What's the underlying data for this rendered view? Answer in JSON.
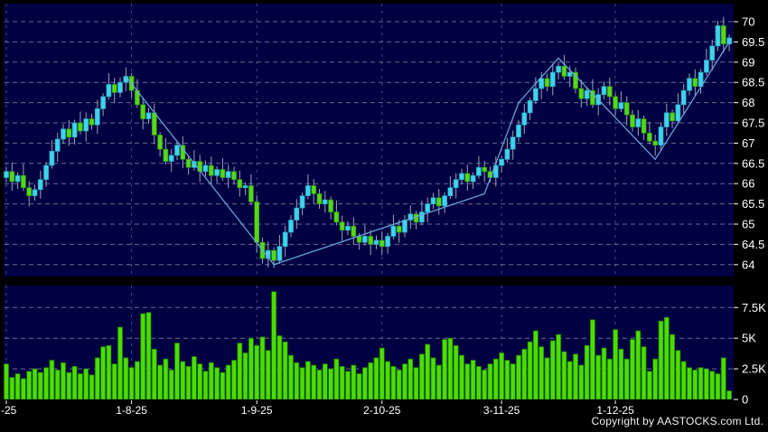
{
  "window": {
    "copyright": "Copyright by AASTOCKS.com Ltd."
  },
  "colors": {
    "background": "#000000",
    "panel_background": "#000042",
    "grid": "#9393b8",
    "candle_up": "#43d1e8",
    "candle_up_edge": "#1fa8c6",
    "candle_down": "#57d51f",
    "candle_down_edge": "#2f9a07",
    "wick": "#9aa4b8",
    "volume_bar": "#4ade00",
    "volume_bar_edge": "#227c00",
    "zigzag_line": "#6fa9e2",
    "axis_text": "#ffffff"
  },
  "chart_data": {
    "type": "candlestick",
    "title": "",
    "panels": [
      "price",
      "volume"
    ],
    "legend": "none",
    "grid": "dashed",
    "price_axis": {
      "side": "right",
      "min": 64,
      "max": 70,
      "step": 0.5,
      "ticks": [
        "70",
        "69.5",
        "69",
        "68.5",
        "68",
        "67.5",
        "67",
        "66.5",
        "66",
        "65.5",
        "65",
        "64.5",
        "64"
      ]
    },
    "volume_axis": {
      "side": "right",
      "unit": "K",
      "ticks": [
        "7.5K",
        "5K",
        "2.5K",
        "0"
      ],
      "tick_values_k": [
        7.5,
        5,
        2.5,
        0
      ]
    },
    "x_axis": {
      "ticks": [
        {
          "label": "-25",
          "index": 0,
          "clipped": true
        },
        {
          "label": "1-8-25",
          "index": 22
        },
        {
          "label": "1-9-25",
          "index": 44
        },
        {
          "label": "2-10-25",
          "index": 66
        },
        {
          "label": "3-11-25",
          "index": 87
        },
        {
          "label": "1-12-25",
          "index": 107
        }
      ]
    },
    "candle_count": 128,
    "first_open": 66.15,
    "closes": [
      66.3,
      66.05,
      66.2,
      65.9,
      65.7,
      65.85,
      66.1,
      66.45,
      66.8,
      67.1,
      67.35,
      67.15,
      67.5,
      67.3,
      67.6,
      67.45,
      67.85,
      68.15,
      68.45,
      68.25,
      68.5,
      68.65,
      68.3,
      67.95,
      67.6,
      67.75,
      67.2,
      66.85,
      66.55,
      66.7,
      66.95,
      66.6,
      66.4,
      66.55,
      66.3,
      66.45,
      66.2,
      66.35,
      66.15,
      66.3,
      66.1,
      65.9,
      65.95,
      65.55,
      64.55,
      64.15,
      64.35,
      64.1,
      64.45,
      64.8,
      65.1,
      65.4,
      65.7,
      65.95,
      65.75,
      65.5,
      65.6,
      65.3,
      65.05,
      64.85,
      64.95,
      64.7,
      64.55,
      64.7,
      64.5,
      64.6,
      64.45,
      64.7,
      64.95,
      64.8,
      65.1,
      65.25,
      65.05,
      65.3,
      65.5,
      65.65,
      65.45,
      65.7,
      65.9,
      66.1,
      66.25,
      66.05,
      66.2,
      66.4,
      66.3,
      66.15,
      66.45,
      66.6,
      66.85,
      67.15,
      67.45,
      67.75,
      68.05,
      68.35,
      68.6,
      68.4,
      68.75,
      68.9,
      68.65,
      68.75,
      68.35,
      68.1,
      68.3,
      67.95,
      68.2,
      68.4,
      68.15,
      67.85,
      68.0,
      67.7,
      67.4,
      67.6,
      67.25,
      67.05,
      66.95,
      67.4,
      67.75,
      67.55,
      67.95,
      68.3,
      68.6,
      68.4,
      68.75,
      69.05,
      69.4,
      69.9,
      69.45,
      69.6
    ],
    "volumes_k": [
      2.9,
      1.8,
      2.1,
      1.7,
      2.3,
      2.5,
      2.2,
      2.6,
      3.2,
      2.4,
      3.0,
      2.2,
      2.7,
      2.1,
      2.5,
      2.0,
      3.4,
      4.3,
      4.4,
      2.9,
      5.9,
      3.4,
      2.6,
      3.1,
      7.0,
      7.1,
      4.1,
      2.8,
      3.3,
      2.4,
      4.6,
      3.1,
      2.7,
      3.5,
      2.9,
      2.3,
      3.0,
      2.6,
      2.2,
      2.8,
      3.2,
      4.6,
      3.8,
      5.0,
      4.4,
      5.1,
      4.0,
      8.8,
      5.2,
      4.7,
      3.6,
      3.0,
      2.6,
      3.1,
      2.8,
      2.4,
      2.9,
      2.5,
      3.3,
      2.7,
      2.3,
      2.8,
      2.1,
      2.6,
      3.0,
      3.4,
      4.2,
      3.1,
      2.7,
      2.4,
      2.9,
      3.3,
      2.6,
      3.7,
      4.5,
      3.4,
      2.8,
      4.9,
      5.0,
      4.4,
      3.6,
      2.9,
      3.2,
      2.7,
      2.4,
      2.9,
      3.3,
      3.8,
      3.2,
      2.9,
      3.6,
      4.1,
      4.7,
      5.6,
      4.3,
      3.4,
      4.8,
      5.3,
      3.9,
      3.1,
      3.7,
      2.8,
      4.4,
      6.5,
      3.6,
      4.2,
      3.3,
      5.7,
      4.1,
      3.3,
      4.9,
      5.6,
      4.3,
      2.3,
      3.3,
      6.4,
      6.7,
      5.3,
      4.0,
      3.1,
      2.6,
      2.4,
      2.6,
      2.5,
      2.3,
      2.1,
      3.4,
      0.7
    ],
    "wick_up_pattern": [
      0.12,
      0.22,
      0.08,
      0.28,
      0.16
    ],
    "wick_down_pattern": [
      0.18,
      0.08,
      0.26,
      0.12,
      0.22
    ],
    "zigzag_points": [
      [
        21,
        68.65
      ],
      [
        47,
        64.0
      ],
      [
        84,
        65.75
      ],
      [
        90,
        68.0
      ],
      [
        97,
        69.1
      ],
      [
        114,
        66.6
      ],
      [
        127,
        69.5
      ]
    ]
  }
}
